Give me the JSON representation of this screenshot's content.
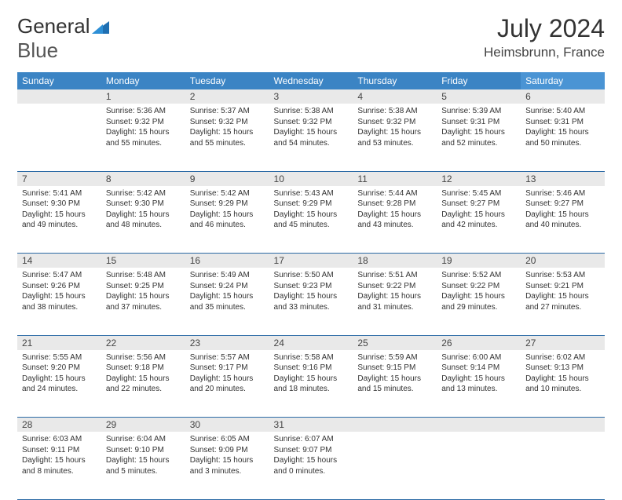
{
  "brand": {
    "part1": "General",
    "part2": "Blue"
  },
  "title": "July 2024",
  "location": "Heimsbrunn, France",
  "colors": {
    "header_bg": "#3b84c4",
    "header_sat_bg": "#4a94d4",
    "daynum_bg": "#e9e9e9",
    "row_divider": "#2b6aa5",
    "text": "#333333",
    "logo_blue": "#1f6fb2"
  },
  "weekdays": [
    "Sunday",
    "Monday",
    "Tuesday",
    "Wednesday",
    "Thursday",
    "Friday",
    "Saturday"
  ],
  "layout": {
    "first_dow": 1,
    "days_in_month": 31
  },
  "days": {
    "1": {
      "sunrise": "5:36 AM",
      "sunset": "9:32 PM",
      "daylight": "15 hours and 55 minutes."
    },
    "2": {
      "sunrise": "5:37 AM",
      "sunset": "9:32 PM",
      "daylight": "15 hours and 55 minutes."
    },
    "3": {
      "sunrise": "5:38 AM",
      "sunset": "9:32 PM",
      "daylight": "15 hours and 54 minutes."
    },
    "4": {
      "sunrise": "5:38 AM",
      "sunset": "9:32 PM",
      "daylight": "15 hours and 53 minutes."
    },
    "5": {
      "sunrise": "5:39 AM",
      "sunset": "9:31 PM",
      "daylight": "15 hours and 52 minutes."
    },
    "6": {
      "sunrise": "5:40 AM",
      "sunset": "9:31 PM",
      "daylight": "15 hours and 50 minutes."
    },
    "7": {
      "sunrise": "5:41 AM",
      "sunset": "9:30 PM",
      "daylight": "15 hours and 49 minutes."
    },
    "8": {
      "sunrise": "5:42 AM",
      "sunset": "9:30 PM",
      "daylight": "15 hours and 48 minutes."
    },
    "9": {
      "sunrise": "5:42 AM",
      "sunset": "9:29 PM",
      "daylight": "15 hours and 46 minutes."
    },
    "10": {
      "sunrise": "5:43 AM",
      "sunset": "9:29 PM",
      "daylight": "15 hours and 45 minutes."
    },
    "11": {
      "sunrise": "5:44 AM",
      "sunset": "9:28 PM",
      "daylight": "15 hours and 43 minutes."
    },
    "12": {
      "sunrise": "5:45 AM",
      "sunset": "9:27 PM",
      "daylight": "15 hours and 42 minutes."
    },
    "13": {
      "sunrise": "5:46 AM",
      "sunset": "9:27 PM",
      "daylight": "15 hours and 40 minutes."
    },
    "14": {
      "sunrise": "5:47 AM",
      "sunset": "9:26 PM",
      "daylight": "15 hours and 38 minutes."
    },
    "15": {
      "sunrise": "5:48 AM",
      "sunset": "9:25 PM",
      "daylight": "15 hours and 37 minutes."
    },
    "16": {
      "sunrise": "5:49 AM",
      "sunset": "9:24 PM",
      "daylight": "15 hours and 35 minutes."
    },
    "17": {
      "sunrise": "5:50 AM",
      "sunset": "9:23 PM",
      "daylight": "15 hours and 33 minutes."
    },
    "18": {
      "sunrise": "5:51 AM",
      "sunset": "9:22 PM",
      "daylight": "15 hours and 31 minutes."
    },
    "19": {
      "sunrise": "5:52 AM",
      "sunset": "9:22 PM",
      "daylight": "15 hours and 29 minutes."
    },
    "20": {
      "sunrise": "5:53 AM",
      "sunset": "9:21 PM",
      "daylight": "15 hours and 27 minutes."
    },
    "21": {
      "sunrise": "5:55 AM",
      "sunset": "9:20 PM",
      "daylight": "15 hours and 24 minutes."
    },
    "22": {
      "sunrise": "5:56 AM",
      "sunset": "9:18 PM",
      "daylight": "15 hours and 22 minutes."
    },
    "23": {
      "sunrise": "5:57 AM",
      "sunset": "9:17 PM",
      "daylight": "15 hours and 20 minutes."
    },
    "24": {
      "sunrise": "5:58 AM",
      "sunset": "9:16 PM",
      "daylight": "15 hours and 18 minutes."
    },
    "25": {
      "sunrise": "5:59 AM",
      "sunset": "9:15 PM",
      "daylight": "15 hours and 15 minutes."
    },
    "26": {
      "sunrise": "6:00 AM",
      "sunset": "9:14 PM",
      "daylight": "15 hours and 13 minutes."
    },
    "27": {
      "sunrise": "6:02 AM",
      "sunset": "9:13 PM",
      "daylight": "15 hours and 10 minutes."
    },
    "28": {
      "sunrise": "6:03 AM",
      "sunset": "9:11 PM",
      "daylight": "15 hours and 8 minutes."
    },
    "29": {
      "sunrise": "6:04 AM",
      "sunset": "9:10 PM",
      "daylight": "15 hours and 5 minutes."
    },
    "30": {
      "sunrise": "6:05 AM",
      "sunset": "9:09 PM",
      "daylight": "15 hours and 3 minutes."
    },
    "31": {
      "sunrise": "6:07 AM",
      "sunset": "9:07 PM",
      "daylight": "15 hours and 0 minutes."
    }
  },
  "labels": {
    "sunrise": "Sunrise:",
    "sunset": "Sunset:",
    "daylight": "Daylight:"
  }
}
